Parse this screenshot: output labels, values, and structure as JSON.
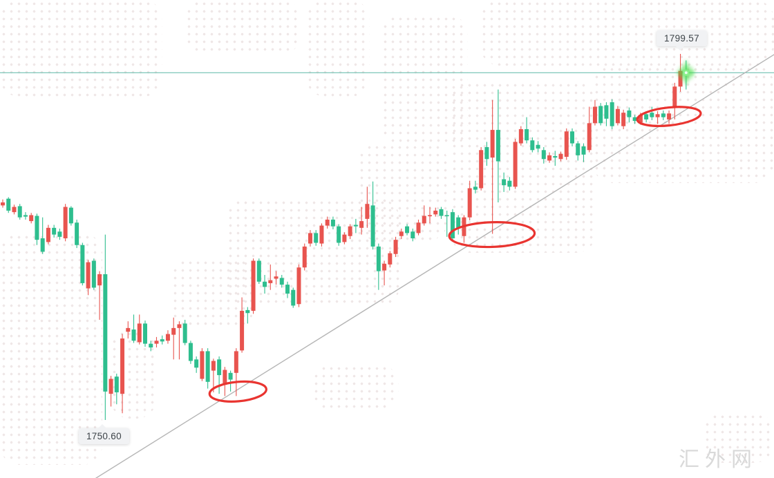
{
  "page": {
    "background": "#ffffff"
  },
  "watermark": {
    "text": "汇外网",
    "color": "#d9d9d9"
  },
  "price_labels": {
    "high": {
      "value": "1799.57"
    },
    "low": {
      "value": "1750.60"
    }
  },
  "lines": {
    "current_price_line": {
      "price": 1797.05,
      "color": "#5cb8a7"
    },
    "trendline": {
      "color": "#b5b5b5",
      "from": {
        "index": 15.9,
        "price": 1742.6
      },
      "to": {
        "index": 135.7,
        "price": 1799.6
      }
    }
  },
  "annotations": {
    "color": "#e93430",
    "ellipses": [
      {
        "index": 41.3,
        "price": 1754.4,
        "index_radius": 5.0,
        "price_radius": 1.3,
        "angle": -5
      },
      {
        "index": 85.9,
        "price": 1775.4,
        "index_radius": 7.5,
        "price_radius": 1.65,
        "angle": -2
      },
      {
        "index": 117.0,
        "price": 1791.2,
        "index_radius": 5.6,
        "price_radius": 1.2,
        "angle": -6
      }
    ],
    "glow": {
      "index": 120,
      "price": 1797.05,
      "color": "#49df49"
    }
  },
  "chart_data": {
    "type": "candlestick",
    "title": "",
    "xlabel": "",
    "ylabel": "",
    "convention": "red-up-green-down",
    "up_color": "#e8544f",
    "down_color": "#2ebe8e",
    "price_range_shown": [
      1750.6,
      1799.57
    ],
    "labeled_low": 1750.6,
    "labeled_high": 1799.57,
    "candles_ohlc": [
      [
        1779.3,
        1780.1,
        1779.0,
        1779.7
      ],
      [
        1780.2,
        1780.4,
        1778.3,
        1778.6
      ],
      [
        1778.4,
        1779.4,
        1778.1,
        1779.1
      ],
      [
        1779.2,
        1779.5,
        1777.4,
        1777.7
      ],
      [
        1778.0,
        1778.4,
        1777.4,
        1777.8
      ],
      [
        1777.2,
        1778.3,
        1776.9,
        1778.0
      ],
      [
        1777.9,
        1778.2,
        1774.0,
        1774.7
      ],
      [
        1774.9,
        1777.7,
        1772.8,
        1773.1
      ],
      [
        1774.4,
        1776.7,
        1774.1,
        1776.3
      ],
      [
        1776.3,
        1776.7,
        1775.0,
        1775.4
      ],
      [
        1775.8,
        1776.2,
        1774.7,
        1775.1
      ],
      [
        1774.9,
        1779.5,
        1774.5,
        1779.1
      ],
      [
        1779.0,
        1779.2,
        1776.6,
        1776.9
      ],
      [
        1777.0,
        1777.4,
        1773.6,
        1774.0
      ],
      [
        1774.0,
        1774.3,
        1768.6,
        1768.9
      ],
      [
        1768.2,
        1772.0,
        1767.3,
        1771.7
      ],
      [
        1771.9,
        1772.2,
        1768.0,
        1768.3
      ],
      [
        1768.6,
        1770.5,
        1764.0,
        1770.1
      ],
      [
        1770.1,
        1775.4,
        1750.6,
        1754.4
      ],
      [
        1754.1,
        1756.5,
        1752.4,
        1756.1
      ],
      [
        1756.4,
        1756.8,
        1752.7,
        1754.3
      ],
      [
        1754.1,
        1762.1,
        1751.5,
        1761.5
      ],
      [
        1762.4,
        1763.8,
        1761.5,
        1762.9
      ],
      [
        1762.7,
        1764.7,
        1760.9,
        1761.2
      ],
      [
        1761.0,
        1764.7,
        1760.7,
        1763.5
      ],
      [
        1763.5,
        1763.9,
        1760.4,
        1760.8
      ],
      [
        1760.8,
        1761.2,
        1759.8,
        1760.3
      ],
      [
        1760.8,
        1761.7,
        1760.3,
        1761.2
      ],
      [
        1761.4,
        1761.9,
        1760.7,
        1761.1
      ],
      [
        1761.2,
        1762.6,
        1760.8,
        1762.1
      ],
      [
        1762.0,
        1764.3,
        1758.7,
        1762.9
      ],
      [
        1762.9,
        1763.8,
        1758.7,
        1763.4
      ],
      [
        1763.5,
        1764.0,
        1760.6,
        1760.9
      ],
      [
        1760.9,
        1761.2,
        1758.1,
        1758.5
      ],
      [
        1758.7,
        1759.1,
        1756.9,
        1757.6
      ],
      [
        1756.1,
        1760.2,
        1755.8,
        1759.8
      ],
      [
        1759.8,
        1760.2,
        1754.8,
        1755.7
      ],
      [
        1757.2,
        1758.8,
        1754.3,
        1758.5
      ],
      [
        1758.7,
        1759.1,
        1754.1,
        1756.6
      ],
      [
        1755.3,
        1757.7,
        1753.8,
        1757.3
      ],
      [
        1756.9,
        1757.2,
        1754.4,
        1756.0
      ],
      [
        1756.9,
        1760.2,
        1753.8,
        1759.8
      ],
      [
        1759.9,
        1767.0,
        1759.6,
        1765.2
      ],
      [
        1765.3,
        1765.7,
        1763.5,
        1764.9
      ],
      [
        1765.2,
        1772.2,
        1764.8,
        1771.9
      ],
      [
        1771.9,
        1772.2,
        1768.8,
        1769.1
      ],
      [
        1769.1,
        1770.0,
        1767.5,
        1768.4
      ],
      [
        1768.9,
        1771.4,
        1768.0,
        1769.3
      ],
      [
        1769.5,
        1770.5,
        1768.7,
        1769.8
      ],
      [
        1769.6,
        1770.0,
        1768.3,
        1768.7
      ],
      [
        1768.7,
        1769.1,
        1766.9,
        1767.5
      ],
      [
        1768.0,
        1768.3,
        1765.6,
        1765.9
      ],
      [
        1766.1,
        1771.4,
        1765.7,
        1771.0
      ],
      [
        1771.0,
        1774.2,
        1770.6,
        1773.8
      ],
      [
        1774.2,
        1776.0,
        1773.8,
        1775.6
      ],
      [
        1775.6,
        1776.0,
        1773.9,
        1774.3
      ],
      [
        1774.2,
        1776.9,
        1773.8,
        1776.6
      ],
      [
        1776.6,
        1777.8,
        1776.2,
        1777.4
      ],
      [
        1777.4,
        1777.8,
        1776.1,
        1776.5
      ],
      [
        1776.5,
        1776.8,
        1773.9,
        1774.3
      ],
      [
        1774.4,
        1775.7,
        1774.1,
        1775.4
      ],
      [
        1775.2,
        1776.8,
        1774.8,
        1776.5
      ],
      [
        1776.7,
        1777.5,
        1775.6,
        1776.5
      ],
      [
        1776.3,
        1779.1,
        1775.4,
        1777.2
      ],
      [
        1777.5,
        1781.8,
        1776.3,
        1779.5
      ],
      [
        1779.3,
        1782.5,
        1773.4,
        1773.8
      ],
      [
        1773.8,
        1774.2,
        1768.0,
        1770.5
      ],
      [
        1770.6,
        1771.9,
        1768.6,
        1771.5
      ],
      [
        1771.4,
        1773.2,
        1771.0,
        1772.9
      ],
      [
        1772.8,
        1775.1,
        1772.4,
        1774.7
      ],
      [
        1775.2,
        1776.2,
        1774.8,
        1775.8
      ],
      [
        1776.5,
        1776.8,
        1775.3,
        1775.6
      ],
      [
        1775.8,
        1776.2,
        1774.5,
        1774.9
      ],
      [
        1775.6,
        1777.4,
        1775.3,
        1777.0
      ],
      [
        1776.9,
        1779.3,
        1776.6,
        1777.9
      ],
      [
        1777.9,
        1779.1,
        1776.9,
        1778.0
      ],
      [
        1778.1,
        1779.0,
        1777.8,
        1778.6
      ],
      [
        1778.8,
        1779.1,
        1777.5,
        1777.9
      ],
      [
        1778.0,
        1778.6,
        1775.1,
        1777.9
      ],
      [
        1778.4,
        1778.8,
        1774.5,
        1774.9
      ],
      [
        1777.7,
        1778.0,
        1775.4,
        1776.3
      ],
      [
        1775.2,
        1778.0,
        1774.3,
        1777.7
      ],
      [
        1777.7,
        1782.6,
        1777.3,
        1781.6
      ],
      [
        1781.8,
        1782.6,
        1780.9,
        1781.4
      ],
      [
        1781.6,
        1787.1,
        1781.3,
        1786.7
      ],
      [
        1787.1,
        1787.8,
        1784.6,
        1785.5
      ],
      [
        1785.7,
        1793.4,
        1775.5,
        1789.4
      ],
      [
        1789.4,
        1794.8,
        1779.7,
        1785.2
      ],
      [
        1782.8,
        1783.7,
        1781.1,
        1782.0
      ],
      [
        1782.6,
        1783.1,
        1781.3,
        1781.8
      ],
      [
        1781.8,
        1788.2,
        1781.5,
        1787.8
      ],
      [
        1787.6,
        1789.9,
        1787.3,
        1789.5
      ],
      [
        1789.5,
        1791.1,
        1787.6,
        1788.0
      ],
      [
        1788.0,
        1788.4,
        1786.4,
        1786.7
      ],
      [
        1787.4,
        1787.9,
        1786.4,
        1786.9
      ],
      [
        1786.7,
        1787.1,
        1784.9,
        1785.5
      ],
      [
        1785.3,
        1786.4,
        1785.0,
        1786.0
      ],
      [
        1785.9,
        1786.6,
        1784.6,
        1785.7
      ],
      [
        1785.5,
        1786.5,
        1785.2,
        1786.2
      ],
      [
        1785.8,
        1789.6,
        1785.4,
        1789.2
      ],
      [
        1789.2,
        1789.6,
        1787.2,
        1787.6
      ],
      [
        1787.6,
        1787.9,
        1785.3,
        1786.0
      ],
      [
        1787.2,
        1787.6,
        1785.1,
        1786.1
      ],
      [
        1786.7,
        1792.5,
        1786.4,
        1790.3
      ],
      [
        1790.3,
        1793.4,
        1790.0,
        1792.5
      ],
      [
        1792.6,
        1793.0,
        1790.0,
        1790.3
      ],
      [
        1792.7,
        1793.1,
        1789.9,
        1790.9
      ],
      [
        1793.1,
        1793.5,
        1789.5,
        1789.9
      ],
      [
        1790.3,
        1792.6,
        1790.0,
        1792.2
      ],
      [
        1789.9,
        1792.1,
        1789.5,
        1791.7
      ],
      [
        1792.0,
        1792.4,
        1790.4,
        1791.1
      ],
      [
        1791.1,
        1791.4,
        1790.2,
        1790.6
      ],
      [
        1790.4,
        1791.7,
        1790.1,
        1791.4
      ],
      [
        1791.5,
        1791.9,
        1790.4,
        1790.8
      ],
      [
        1791.7,
        1792.5,
        1790.7,
        1791.1
      ],
      [
        1791.1,
        1791.9,
        1790.2,
        1791.5
      ],
      [
        1791.6,
        1792.0,
        1790.7,
        1791.1
      ],
      [
        1790.8,
        1792.0,
        1790.2,
        1791.6
      ],
      [
        1792.5,
        1795.7,
        1790.8,
        1795.2
      ],
      [
        1795.2,
        1799.57,
        1794.5,
        1797.3
      ],
      [
        1797.4,
        1798.7,
        1794.8,
        1797.05
      ]
    ]
  }
}
